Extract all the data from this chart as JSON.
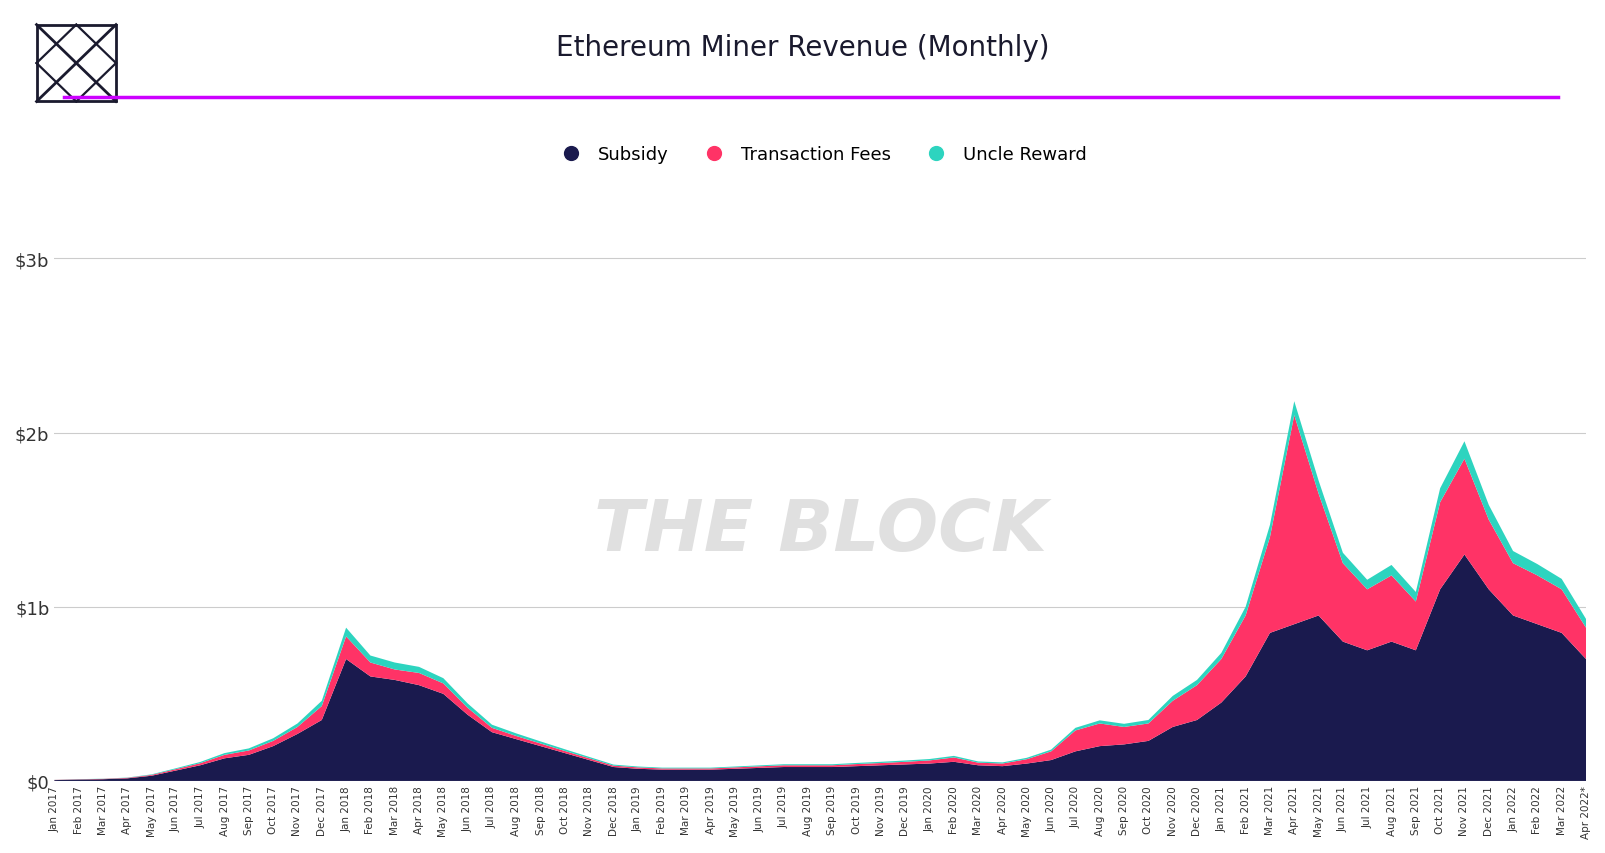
{
  "title": "Ethereum Miner Revenue (Monthly)",
  "title_color": "#1a1a2e",
  "title_fontsize": 20,
  "subtitle_line_color": "#cc00ff",
  "background_color": "#ffffff",
  "watermark": "THE BLOCK",
  "watermark_color": "#e0e0e0",
  "legend_items": [
    "Subsidy",
    "Transaction Fees",
    "Uncle Reward"
  ],
  "colors": {
    "subsidy": "#1a1a4e",
    "tx_fees": "#ff3366",
    "uncle": "#2dd4bf"
  },
  "y_ticks": [
    0,
    1000000000,
    2000000000,
    3000000000
  ],
  "y_tick_labels": [
    "$0",
    "$1b",
    "$2b",
    "$3b"
  ],
  "ylim": [
    0,
    3200000000
  ],
  "months": [
    "Jan 2017",
    "Feb 2017",
    "Mar 2017",
    "Apr 2017",
    "May 2017",
    "Jun 2017",
    "Jul 2017",
    "Aug 2017",
    "Sep 2017",
    "Oct 2017",
    "Nov 2017",
    "Dec 2017",
    "Jan 2018",
    "Feb 2018",
    "Mar 2018",
    "Apr 2018",
    "May 2018",
    "Jun 2018",
    "Jul 2018",
    "Aug 2018",
    "Sep 2018",
    "Oct 2018",
    "Nov 2018",
    "Dec 2018",
    "Jan 2019",
    "Feb 2019",
    "Mar 2019",
    "Apr 2019",
    "May 2019",
    "Jun 2019",
    "Jul 2019",
    "Aug 2019",
    "Sep 2019",
    "Oct 2019",
    "Nov 2019",
    "Dec 2019",
    "Jan 2020",
    "Feb 2020",
    "Mar 2020",
    "Apr 2020",
    "May 2020",
    "Jun 2020",
    "Jul 2020",
    "Aug 2020",
    "Sep 2020",
    "Oct 2020",
    "Nov 2020",
    "Dec 2020",
    "Jan 2021",
    "Feb 2021",
    "Mar 2021",
    "Apr 2021",
    "May 2021",
    "Jun 2021",
    "Jul 2021",
    "Aug 2021",
    "Sep 2021",
    "Oct 2021",
    "Nov 2021",
    "Dec 2021",
    "Jan 2022",
    "Feb 2022",
    "Mar 2022",
    "Apr 2022*"
  ],
  "subsidy": [
    5000000,
    8000000,
    10000000,
    15000000,
    30000000,
    60000000,
    90000000,
    130000000,
    150000000,
    200000000,
    270000000,
    350000000,
    700000000,
    600000000,
    580000000,
    550000000,
    500000000,
    380000000,
    280000000,
    240000000,
    200000000,
    160000000,
    120000000,
    80000000,
    70000000,
    65000000,
    65000000,
    65000000,
    70000000,
    75000000,
    80000000,
    80000000,
    80000000,
    85000000,
    90000000,
    95000000,
    100000000,
    110000000,
    90000000,
    85000000,
    100000000,
    120000000,
    170000000,
    200000000,
    210000000,
    230000000,
    310000000,
    350000000,
    450000000,
    600000000,
    850000000,
    900000000,
    950000000,
    800000000,
    750000000,
    800000000,
    750000000,
    1100000000,
    1300000000,
    1100000000,
    950000000,
    900000000,
    850000000,
    700000000
  ],
  "tx_fees": [
    1000000,
    1500000,
    2000000,
    3000000,
    5000000,
    8000000,
    12000000,
    20000000,
    25000000,
    30000000,
    40000000,
    80000000,
    130000000,
    80000000,
    60000000,
    70000000,
    60000000,
    40000000,
    25000000,
    18000000,
    15000000,
    12000000,
    10000000,
    8000000,
    8000000,
    7000000,
    7000000,
    7000000,
    8000000,
    9000000,
    10000000,
    10000000,
    10000000,
    12000000,
    13000000,
    15000000,
    18000000,
    25000000,
    15000000,
    15000000,
    25000000,
    50000000,
    120000000,
    130000000,
    100000000,
    100000000,
    150000000,
    200000000,
    250000000,
    350000000,
    550000000,
    1200000000,
    700000000,
    450000000,
    350000000,
    380000000,
    280000000,
    500000000,
    550000000,
    400000000,
    300000000,
    280000000,
    250000000,
    180000000
  ],
  "uncle": [
    500000,
    800000,
    1000000,
    1500000,
    3000000,
    5000000,
    7000000,
    10000000,
    12000000,
    15000000,
    20000000,
    30000000,
    50000000,
    40000000,
    40000000,
    35000000,
    30000000,
    25000000,
    18000000,
    15000000,
    12000000,
    10000000,
    8000000,
    6000000,
    5000000,
    4500000,
    4500000,
    4500000,
    5000000,
    5500000,
    6000000,
    6000000,
    6000000,
    6500000,
    7000000,
    7500000,
    8000000,
    9000000,
    7000000,
    6500000,
    8000000,
    10000000,
    15000000,
    18000000,
    18000000,
    20000000,
    28000000,
    30000000,
    35000000,
    50000000,
    70000000,
    80000000,
    75000000,
    60000000,
    55000000,
    60000000,
    55000000,
    80000000,
    100000000,
    85000000,
    70000000,
    65000000,
    60000000,
    50000000
  ]
}
